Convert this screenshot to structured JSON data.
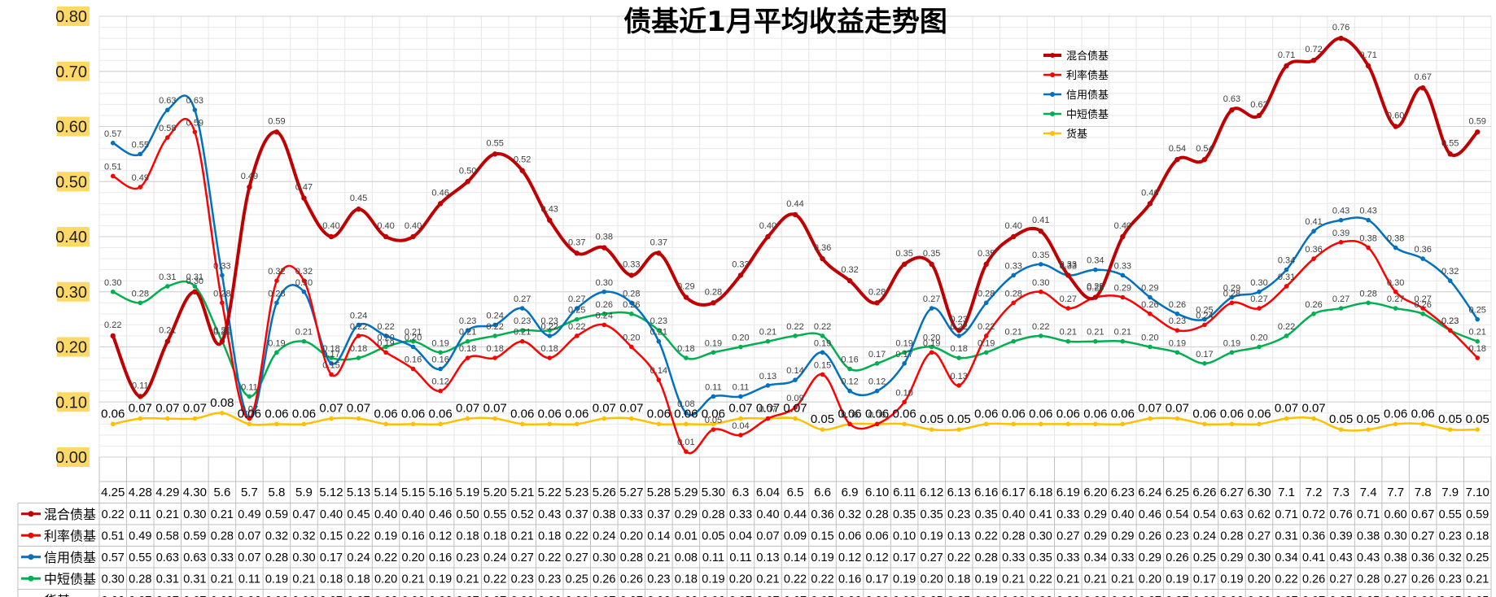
{
  "chart_data": {
    "type": "line",
    "title": "债基近1月平均收益走势图",
    "categories": [
      "4.25",
      "4.28",
      "4.29",
      "4.30",
      "5.6",
      "5.7",
      "5.8",
      "5.9",
      "5.12",
      "5.13",
      "5.14",
      "5.15",
      "5.16",
      "5.19",
      "5.20",
      "5.21",
      "5.22",
      "5.23",
      "5.26",
      "5.27",
      "5.28",
      "5.29",
      "5.30",
      "6.3",
      "6.04",
      "6.5",
      "6.6",
      "6.9",
      "6.10",
      "6.11",
      "6.12",
      "6.13",
      "6.16",
      "6.17",
      "6.18",
      "6.19",
      "6.20",
      "6.23",
      "6.24",
      "6.25",
      "6.26",
      "6.27",
      "6.30",
      "7.1",
      "7.2",
      "7.3",
      "7.4",
      "7.7",
      "7.8",
      "7.9",
      "7.10"
    ],
    "y_ticks": [
      "0.00",
      "0.10",
      "0.20",
      "0.30",
      "0.40",
      "0.50",
      "0.60",
      "0.70",
      "0.80"
    ],
    "ylim": [
      0,
      0.8
    ],
    "grid": true,
    "legend_position": "top-right",
    "series": [
      {
        "name": "混合债基",
        "color": "#c00000",
        "values": [
          0.22,
          0.11,
          0.21,
          0.3,
          0.21,
          0.49,
          0.59,
          0.47,
          0.4,
          0.45,
          0.4,
          0.4,
          0.46,
          0.5,
          0.55,
          0.52,
          0.43,
          0.37,
          0.38,
          0.33,
          0.37,
          0.29,
          0.28,
          0.33,
          0.4,
          0.44,
          0.36,
          0.32,
          0.28,
          0.35,
          0.35,
          0.23,
          0.35,
          0.4,
          0.41,
          0.33,
          0.29,
          0.4,
          0.46,
          0.54,
          0.54,
          0.63,
          0.62,
          0.71,
          0.72,
          0.76,
          0.71,
          0.6,
          0.67,
          0.55,
          0.59
        ]
      },
      {
        "name": "利率债基",
        "color": "#ff0000",
        "values": [
          0.51,
          0.49,
          0.58,
          0.59,
          0.28,
          0.07,
          0.32,
          0.32,
          0.15,
          0.22,
          0.19,
          0.16,
          0.12,
          0.18,
          0.18,
          0.21,
          0.18,
          0.22,
          0.24,
          0.2,
          0.14,
          0.01,
          0.05,
          0.04,
          0.07,
          0.09,
          0.15,
          0.06,
          0.06,
          0.1,
          0.19,
          0.13,
          0.22,
          0.28,
          0.3,
          0.27,
          0.29,
          0.29,
          0.26,
          0.23,
          0.24,
          0.28,
          0.27,
          0.31,
          0.36,
          0.39,
          0.38,
          0.3,
          0.27,
          0.23,
          0.18
        ]
      },
      {
        "name": "信用债基",
        "color": "#0070c0",
        "values": [
          0.57,
          0.55,
          0.63,
          0.63,
          0.33,
          0.07,
          0.28,
          0.3,
          0.17,
          0.24,
          0.22,
          0.2,
          0.16,
          0.23,
          0.24,
          0.27,
          0.22,
          0.27,
          0.3,
          0.28,
          0.21,
          0.08,
          0.11,
          0.11,
          0.13,
          0.14,
          0.19,
          0.12,
          0.12,
          0.17,
          0.27,
          0.22,
          0.28,
          0.33,
          0.35,
          0.33,
          0.34,
          0.33,
          0.29,
          0.26,
          0.25,
          0.29,
          0.3,
          0.34,
          0.41,
          0.43,
          0.43,
          0.38,
          0.36,
          0.32,
          0.25
        ]
      },
      {
        "name": "中短债基",
        "color": "#00b050",
        "values": [
          0.3,
          0.28,
          0.31,
          0.31,
          0.21,
          0.11,
          0.19,
          0.21,
          0.18,
          0.18,
          0.2,
          0.21,
          0.19,
          0.21,
          0.22,
          0.23,
          0.23,
          0.25,
          0.26,
          0.26,
          0.23,
          0.18,
          0.19,
          0.2,
          0.21,
          0.22,
          0.22,
          0.16,
          0.17,
          0.19,
          0.2,
          0.18,
          0.19,
          0.21,
          0.22,
          0.21,
          0.21,
          0.21,
          0.2,
          0.19,
          0.17,
          0.19,
          0.2,
          0.22,
          0.26,
          0.27,
          0.28,
          0.27,
          0.26,
          0.23,
          0.21
        ]
      },
      {
        "name": "货基",
        "color": "#ffc000",
        "values": [
          0.06,
          0.07,
          0.07,
          0.07,
          0.08,
          0.06,
          0.06,
          0.06,
          0.07,
          0.07,
          0.06,
          0.06,
          0.06,
          0.07,
          0.07,
          0.06,
          0.06,
          0.06,
          0.07,
          0.07,
          0.06,
          0.06,
          0.06,
          0.07,
          0.07,
          0.07,
          0.05,
          0.06,
          0.06,
          0.06,
          0.05,
          0.05,
          0.06,
          0.06,
          0.06,
          0.06,
          0.06,
          0.06,
          0.07,
          0.07,
          0.06,
          0.06,
          0.06,
          0.07,
          0.07,
          0.05,
          0.05,
          0.06,
          0.06,
          0.05,
          0.05
        ]
      }
    ]
  }
}
